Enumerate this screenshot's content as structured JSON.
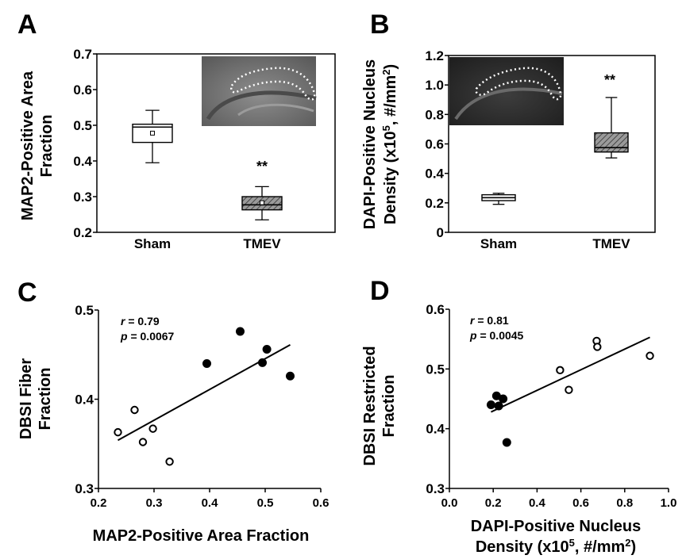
{
  "chart_data": [
    {
      "panel": "A",
      "type": "box",
      "ylabel_lines": [
        "MAP2-Positive Area",
        "Fraction"
      ],
      "ylim": [
        0.2,
        0.7
      ],
      "yticks": [
        "0.2",
        "0.3",
        "0.4",
        "0.5",
        "0.6",
        "0.7"
      ],
      "categories": [
        "Sham",
        "TMEV"
      ],
      "boxes": [
        {
          "name": "Sham",
          "min": 0.395,
          "q1": 0.452,
          "median": 0.495,
          "q3": 0.503,
          "max": 0.542,
          "mean": 0.478,
          "style": "white"
        },
        {
          "name": "TMEV",
          "min": 0.235,
          "q1": 0.263,
          "median": 0.277,
          "q3": 0.3,
          "max": 0.328,
          "mean": 0.283,
          "style": "hatched"
        }
      ],
      "significance": {
        "category": "TMEV",
        "label": "**"
      },
      "inset": "hippocampus micrograph with dotted outline"
    },
    {
      "panel": "B",
      "type": "box",
      "ylabel_line1_parts": [
        "DAPI-Positive Nucleus"
      ],
      "ylabel_line2_parts": [
        "Density (x10",
        "5",
        ", #/mm",
        "2",
        ")"
      ],
      "ylim": [
        0,
        1.2
      ],
      "yticks": [
        "0",
        "0.2",
        "0.4",
        "0.6",
        "0.8",
        "1.0",
        "1.2"
      ],
      "categories": [
        "Sham",
        "TMEV"
      ],
      "boxes": [
        {
          "name": "Sham",
          "min": 0.19,
          "q1": 0.215,
          "median": 0.235,
          "q3": 0.255,
          "max": 0.265,
          "style": "white"
        },
        {
          "name": "TMEV",
          "min": 0.505,
          "q1": 0.545,
          "median": 0.575,
          "q3": 0.675,
          "max": 0.915,
          "style": "hatched"
        }
      ],
      "significance": {
        "category": "TMEV",
        "label": "**"
      },
      "inset": "hippocampus micrograph with dotted outline"
    },
    {
      "panel": "C",
      "type": "scatter",
      "xlabel": "MAP2-Positive Area Fraction",
      "ylabel_lines": [
        "DBSI Fiber",
        "Fraction"
      ],
      "xlim": [
        0.2,
        0.6
      ],
      "ylim": [
        0.3,
        0.5
      ],
      "xticks": [
        "0.2",
        "0.3",
        "0.4",
        "0.5",
        "0.6"
      ],
      "yticks": [
        "0.3",
        "0.4",
        "0.5"
      ],
      "stat_r_label": "r",
      "stat_r_value": " = 0.79",
      "stat_p_label": "p",
      "stat_p_value": " = 0.0067",
      "series": [
        {
          "name": "TMEV",
          "marker": "open",
          "points": [
            [
              0.235,
              0.363
            ],
            [
              0.265,
              0.388
            ],
            [
              0.28,
              0.352
            ],
            [
              0.298,
              0.367
            ],
            [
              0.328,
              0.33
            ]
          ]
        },
        {
          "name": "Sham",
          "marker": "filled",
          "points": [
            [
              0.395,
              0.44
            ],
            [
              0.455,
              0.476
            ],
            [
              0.495,
              0.441
            ],
            [
              0.503,
              0.456
            ],
            [
              0.545,
              0.426
            ]
          ]
        }
      ],
      "fit_line": [
        [
          0.235,
          0.354
        ],
        [
          0.545,
          0.461
        ]
      ]
    },
    {
      "panel": "D",
      "type": "scatter",
      "xlabel_line1_parts": [
        "DAPI-Positive Nucleus"
      ],
      "xlabel_line2_parts": [
        "Density (x10",
        "5",
        ", #/mm",
        "2",
        ")"
      ],
      "ylabel_lines": [
        "DBSI Restricted",
        "Fraction"
      ],
      "xlim": [
        0.0,
        1.0
      ],
      "ylim": [
        0.3,
        0.6
      ],
      "xticks": [
        "0.0",
        "0.2",
        "0.4",
        "0.6",
        "0.8",
        "1.0"
      ],
      "yticks": [
        "0.3",
        "0.4",
        "0.5",
        "0.6"
      ],
      "stat_r_label": "r",
      "stat_r_value": " = 0.81",
      "stat_p_label": "p",
      "stat_p_value": " = 0.0045",
      "series": [
        {
          "name": "Sham",
          "marker": "filled",
          "points": [
            [
              0.19,
              0.44
            ],
            [
              0.215,
              0.455
            ],
            [
              0.225,
              0.438
            ],
            [
              0.245,
              0.45
            ],
            [
              0.262,
              0.377
            ]
          ]
        },
        {
          "name": "TMEV",
          "marker": "open",
          "points": [
            [
              0.505,
              0.498
            ],
            [
              0.545,
              0.465
            ],
            [
              0.672,
              0.547
            ],
            [
              0.675,
              0.537
            ],
            [
              0.915,
              0.522
            ]
          ]
        }
      ],
      "fit_line": [
        [
          0.19,
          0.428
        ],
        [
          0.915,
          0.553
        ]
      ]
    }
  ]
}
